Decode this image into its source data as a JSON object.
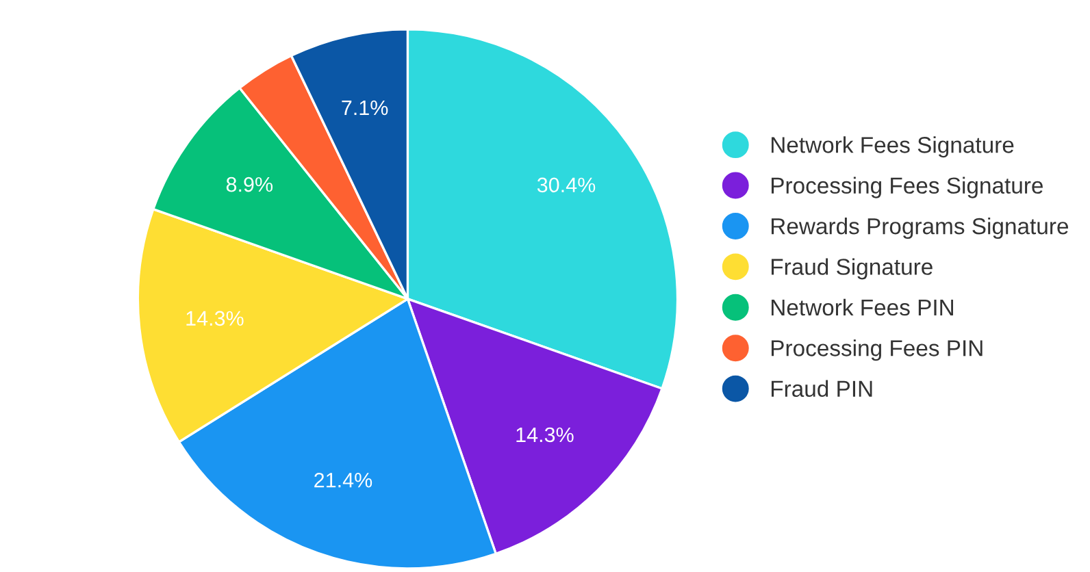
{
  "chart_data": {
    "type": "pie",
    "categories": [
      "Network Fees Signature",
      "Processing Fees Signature",
      "Rewards Programs Signature",
      "Fraud Signature",
      "Network Fees PIN",
      "Processing Fees PIN",
      "Fraud PIN"
    ],
    "values": [
      30.4,
      14.3,
      21.4,
      14.3,
      8.9,
      3.6,
      7.1
    ],
    "colors": [
      "#2ed9dd",
      "#7b1fdb",
      "#1a95f2",
      "#fede33",
      "#06c17a",
      "#fe6131",
      "#0b57a6"
    ],
    "value_labels": [
      "30.4%",
      "14.3%",
      "21.4%",
      "14.3%",
      "8.9%",
      null,
      "7.1%"
    ],
    "legend": "right"
  }
}
